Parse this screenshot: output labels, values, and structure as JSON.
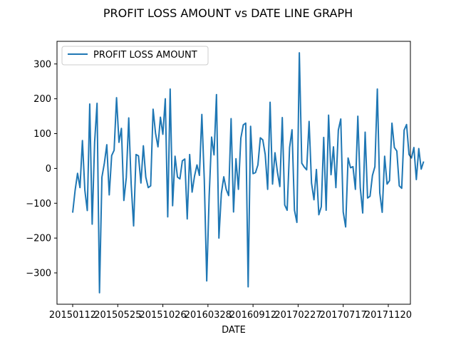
{
  "chart_data": {
    "type": "line",
    "title": "PROFIT LOSS AMOUNT vs DATE LINE GRAPH",
    "xlabel": "DATE",
    "ylabel": "",
    "legend_position": "top-left",
    "grid": false,
    "series_color": "#1f77b4",
    "series": [
      {
        "name": "PROFIT LOSS AMOUNT",
        "values": [
          -127,
          -63,
          -14,
          -55,
          80,
          -63,
          -121,
          185,
          -160,
          75,
          187,
          -357,
          -25,
          15,
          68,
          -76,
          37,
          52,
          203,
          75,
          115,
          -92,
          -26,
          145,
          -45,
          -165,
          40,
          36,
          -42,
          65,
          -25,
          -55,
          -50,
          170,
          101,
          62,
          147,
          98,
          200,
          -139,
          228,
          -107,
          35,
          -25,
          -30,
          22,
          27,
          -145,
          40,
          -68,
          -22,
          10,
          -20,
          155,
          -32,
          -323,
          -80,
          90,
          39,
          212,
          -200,
          -72,
          -24,
          -60,
          -78,
          143,
          -125,
          28,
          -60,
          87,
          125,
          130,
          -340,
          121,
          -15,
          -12,
          10,
          88,
          82,
          40,
          -60,
          190,
          -45,
          45,
          -10,
          -52,
          146,
          -105,
          -120,
          60,
          111,
          -120,
          -155,
          332,
          15,
          4,
          -4,
          135,
          -42,
          -90,
          -3,
          -133,
          -110,
          89,
          -120,
          153,
          -18,
          62,
          -55,
          110,
          142,
          -125,
          -168,
          30,
          2,
          5,
          -60,
          150,
          -55,
          -128,
          104,
          -85,
          -80,
          -20,
          5,
          228,
          -70,
          -126,
          35,
          -45,
          -35,
          130,
          60,
          50,
          -50,
          -57,
          110,
          126,
          40,
          30,
          60,
          -32,
          57,
          -2,
          20
        ]
      }
    ],
    "x_tick_labels": [
      "20150112",
      "20150525",
      "20151026",
      "20160328",
      "20160912",
      "20170227",
      "20170717",
      "20171120"
    ],
    "x_tick_indices": [
      0,
      18.5,
      37,
      55.5,
      74,
      92.5,
      111,
      129.5
    ],
    "x_range": [
      0,
      145
    ],
    "y_ticks": [
      -300,
      -200,
      -100,
      0,
      100,
      200,
      300
    ],
    "ylim": [
      -390,
      365
    ]
  }
}
